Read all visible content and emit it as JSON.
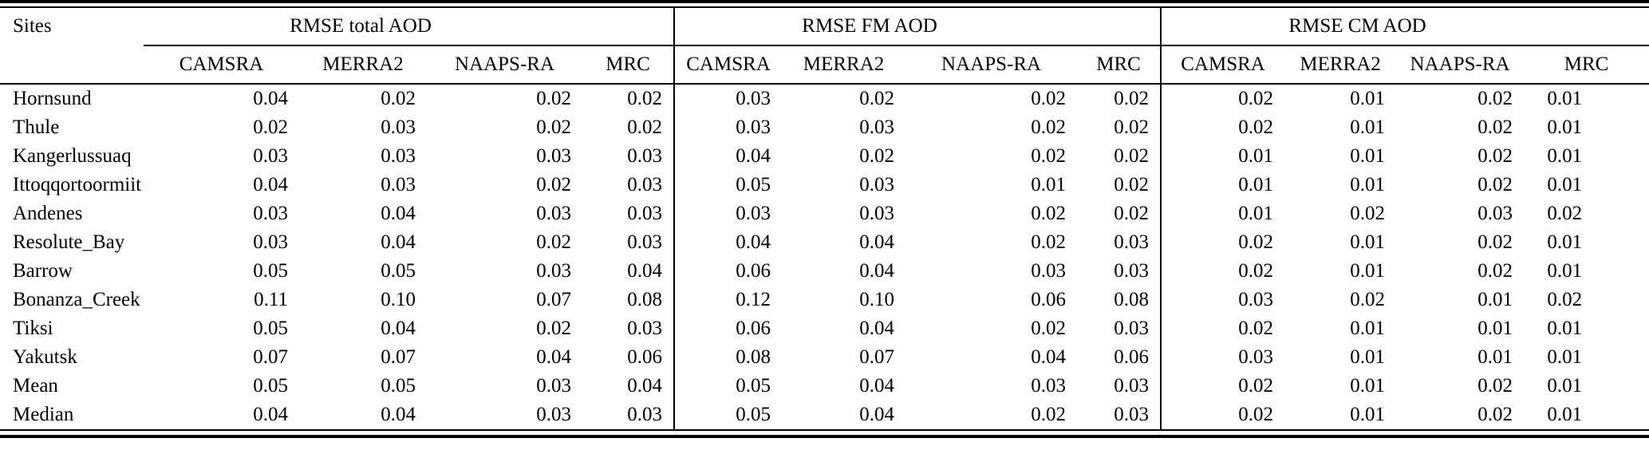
{
  "colors": {
    "text": "#000000",
    "background": "#ffffff",
    "rules": "#000000"
  },
  "table": {
    "row_header_label": "Sites",
    "groups": [
      {
        "label": "RMSE total AOD",
        "models": [
          "CAMSRA",
          "MERRA2",
          "NAAPS-RA",
          "MRC"
        ]
      },
      {
        "label": "RMSE FM AOD",
        "models": [
          "CAMSRA",
          "MERRA2",
          "NAAPS-RA",
          "MRC"
        ]
      },
      {
        "label": "RMSE CM AOD",
        "models": [
          "CAMSRA",
          "MERRA2",
          "NAAPS-RA",
          "MRC"
        ]
      }
    ],
    "rows": [
      {
        "site": "Hornsund",
        "values": [
          "0.04",
          "0.02",
          "0.02",
          "0.02",
          "0.03",
          "0.02",
          "0.02",
          "0.02",
          "0.02",
          "0.01",
          "0.02",
          "0.01"
        ]
      },
      {
        "site": "Thule",
        "values": [
          "0.02",
          "0.03",
          "0.02",
          "0.02",
          "0.03",
          "0.03",
          "0.02",
          "0.02",
          "0.02",
          "0.01",
          "0.02",
          "0.01"
        ]
      },
      {
        "site": "Kangerlussuaq",
        "values": [
          "0.03",
          "0.03",
          "0.03",
          "0.03",
          "0.04",
          "0.02",
          "0.02",
          "0.02",
          "0.01",
          "0.01",
          "0.02",
          "0.01"
        ]
      },
      {
        "site": "Ittoqqortoormiit",
        "values": [
          "0.04",
          "0.03",
          "0.02",
          "0.03",
          "0.05",
          "0.03",
          "0.01",
          "0.02",
          "0.01",
          "0.01",
          "0.02",
          "0.01"
        ]
      },
      {
        "site": "Andenes",
        "values": [
          "0.03",
          "0.04",
          "0.03",
          "0.03",
          "0.03",
          "0.03",
          "0.02",
          "0.02",
          "0.01",
          "0.02",
          "0.03",
          "0.02"
        ]
      },
      {
        "site": "Resolute_Bay",
        "values": [
          "0.03",
          "0.04",
          "0.02",
          "0.03",
          "0.04",
          "0.04",
          "0.02",
          "0.03",
          "0.02",
          "0.01",
          "0.02",
          "0.01"
        ]
      },
      {
        "site": "Barrow",
        "values": [
          "0.05",
          "0.05",
          "0.03",
          "0.04",
          "0.06",
          "0.04",
          "0.03",
          "0.03",
          "0.02",
          "0.01",
          "0.02",
          "0.01"
        ]
      },
      {
        "site": "Bonanza_Creek",
        "values": [
          "0.11",
          "0.10",
          "0.07",
          "0.08",
          "0.12",
          "0.10",
          "0.06",
          "0.08",
          "0.03",
          "0.02",
          "0.01",
          "0.02"
        ]
      },
      {
        "site": "Tiksi",
        "values": [
          "0.05",
          "0.04",
          "0.02",
          "0.03",
          "0.06",
          "0.04",
          "0.02",
          "0.03",
          "0.02",
          "0.01",
          "0.01",
          "0.01"
        ]
      },
      {
        "site": "Yakutsk",
        "values": [
          "0.07",
          "0.07",
          "0.04",
          "0.06",
          "0.08",
          "0.07",
          "0.04",
          "0.06",
          "0.03",
          "0.01",
          "0.01",
          "0.01"
        ]
      },
      {
        "site": "Mean",
        "values": [
          "0.05",
          "0.05",
          "0.03",
          "0.04",
          "0.05",
          "0.04",
          "0.03",
          "0.03",
          "0.02",
          "0.01",
          "0.02",
          "0.01"
        ]
      },
      {
        "site": "Median",
        "values": [
          "0.04",
          "0.04",
          "0.03",
          "0.03",
          "0.05",
          "0.04",
          "0.02",
          "0.03",
          "0.02",
          "0.01",
          "0.02",
          "0.01"
        ]
      }
    ]
  }
}
